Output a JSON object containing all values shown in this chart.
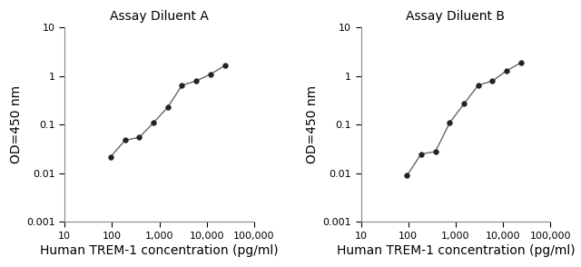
{
  "panel_A": {
    "title": "Assay Diluent A",
    "x": [
      93.75,
      187.5,
      375,
      750,
      1500,
      3000,
      6000,
      12000,
      24000
    ],
    "y": [
      0.022,
      0.048,
      0.055,
      0.11,
      0.23,
      0.65,
      0.8,
      1.1,
      1.65
    ],
    "xlabel": "Human TREM-1 concentration (pg/ml)",
    "ylabel": "OD=450 nm",
    "xlim": [
      10,
      100000
    ],
    "ylim": [
      0.001,
      10
    ]
  },
  "panel_B": {
    "title": "Assay Diluent B",
    "x": [
      93.75,
      187.5,
      375,
      750,
      1500,
      3000,
      6000,
      12000,
      24000
    ],
    "y": [
      0.009,
      0.025,
      0.028,
      0.11,
      0.27,
      0.65,
      0.8,
      1.3,
      1.9
    ],
    "xlabel": "Human TREM-1 concentration (pg/ml)",
    "ylabel": "OD=450 nm",
    "xlim": [
      10,
      100000
    ],
    "ylim": [
      0.001,
      10
    ]
  },
  "line_color": "#666666",
  "marker_color": "#222222",
  "marker_size": 4,
  "xticks": [
    10,
    100,
    1000,
    10000,
    100000
  ],
  "xtick_labels": [
    "10",
    "100",
    "1,000",
    "10,000",
    "100,000"
  ],
  "yticks": [
    0.001,
    0.01,
    0.1,
    1,
    10
  ],
  "ytick_labels": [
    "0.001",
    "0.01",
    "0.1",
    "1",
    "10"
  ],
  "title_fontsize": 10,
  "label_fontsize": 10,
  "tick_fontsize": 8,
  "bg_color": "#ffffff",
  "spine_color": "#888888"
}
